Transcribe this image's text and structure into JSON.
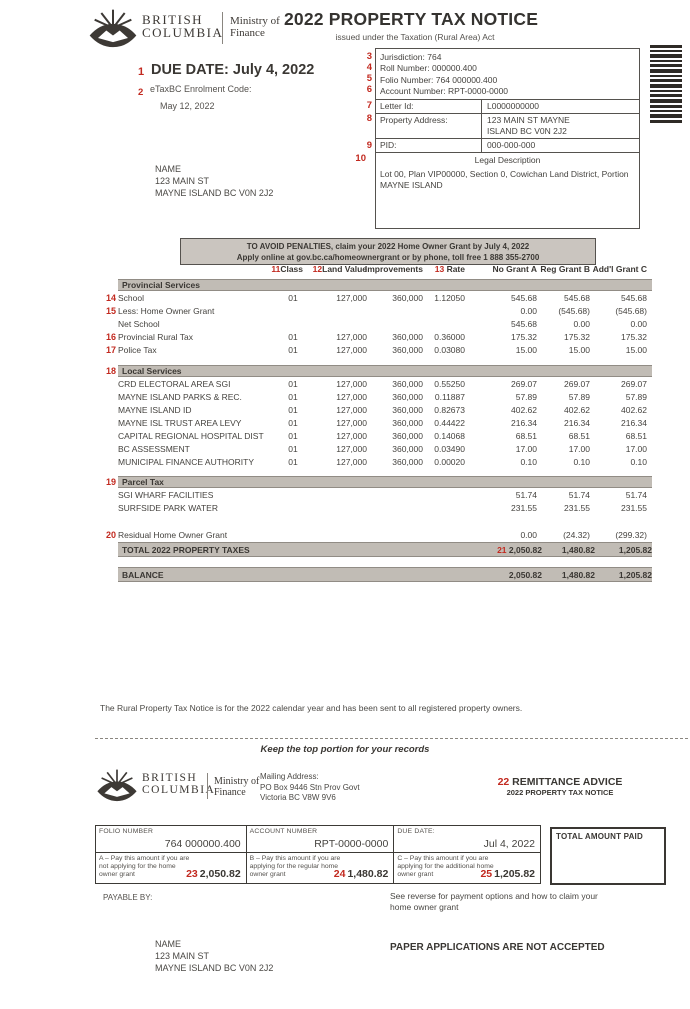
{
  "header": {
    "brand_line1": "BRITISH",
    "brand_line2": "COLUMBIA",
    "ministry_line1": "Ministry of",
    "ministry_line2": "Finance",
    "title": "2022 PROPERTY TAX NOTICE",
    "subtitle": "issued under the Taxation (Rural Area) Act"
  },
  "notice": {
    "due_num": "1",
    "due_label": "DUE DATE:  July 4, 2022",
    "etax_num": "2",
    "etax_label": "eTaxBC Enrolment Code:",
    "issue_date": "May 12, 2022",
    "owner": [
      "NAME",
      "123 MAIN ST",
      "MAYNE ISLAND BC  V0N 2J2"
    ]
  },
  "info_box": {
    "jurisdiction_num": "3",
    "jurisdiction": "Jurisdiction:  764",
    "roll_num": "4",
    "roll": "Roll Number:  000000.400",
    "folio_num": "5",
    "folio": "Folio Number:  764 000000.400",
    "account_num": "6",
    "account": "Account Number:  RPT-0000-0000",
    "letter_num": "7",
    "letter_label": "Letter Id:",
    "letter_value": "L0000000000",
    "address_num": "8",
    "address_label": "Property Address:",
    "address_line1": "123 MAIN ST MAYNE",
    "address_line2": "ISLAND BC V0N 2J2",
    "pid_num": "9",
    "pid_label": "PID:",
    "pid_value": "000-000-000",
    "legal_num": "10",
    "legal_label": "Legal Description",
    "legal_text": "Lot 00, Plan VIP00000, Section 0, Cowichan Land District, Portion MAYNE ISLAND"
  },
  "banner": {
    "line1": "TO AVOID PENALTIES, claim your 2022 Home Owner Grant by July 4, 2022",
    "line2": "Apply online at gov.bc.ca/homeownergrant or by phone, toll free 1 888 355-2700"
  },
  "tax_table": {
    "header": {
      "class_num": "11",
      "class": "Class",
      "land_num": "12",
      "land": "Land Value",
      "improvements": "Improvements",
      "rate_num": "13",
      "rate": "Rate",
      "a": "No Grant A",
      "b": "Reg Grant B",
      "c": "Add'l Grant C"
    },
    "sections": [
      {
        "num": "",
        "title": "Provincial Services",
        "rows": [
          {
            "num": "14",
            "name": "School",
            "class": "01",
            "land": "127,000",
            "imp": "360,000",
            "rate": "1.12050",
            "a": "545.68",
            "b": "545.68",
            "c": "545.68"
          },
          {
            "num": "15",
            "name": "Less: Home Owner Grant",
            "class": "",
            "land": "",
            "imp": "",
            "rate": "",
            "a": "0.00",
            "b": "(545.68)",
            "c": "(545.68)"
          },
          {
            "num": "",
            "name": "Net School",
            "class": "",
            "land": "",
            "imp": "",
            "rate": "",
            "a": "545.68",
            "b": "0.00",
            "c": "0.00"
          },
          {
            "num": "16",
            "name": "Provincial Rural Tax",
            "class": "01",
            "land": "127,000",
            "imp": "360,000",
            "rate": "0.36000",
            "a": "175.32",
            "b": "175.32",
            "c": "175.32"
          },
          {
            "num": "17",
            "name": "Police Tax",
            "class": "01",
            "land": "127,000",
            "imp": "360,000",
            "rate": "0.03080",
            "a": "15.00",
            "b": "15.00",
            "c": "15.00"
          }
        ]
      },
      {
        "num": "18",
        "title": "Local Services",
        "rows": [
          {
            "num": "",
            "name": "CRD ELECTORAL AREA SGI",
            "class": "01",
            "land": "127,000",
            "imp": "360,000",
            "rate": "0.55250",
            "a": "269.07",
            "b": "269.07",
            "c": "269.07"
          },
          {
            "num": "",
            "name": "MAYNE ISLAND PARKS & REC.",
            "class": "01",
            "land": "127,000",
            "imp": "360,000",
            "rate": "0.11887",
            "a": "57.89",
            "b": "57.89",
            "c": "57.89"
          },
          {
            "num": "",
            "name": "MAYNE ISLAND ID",
            "class": "01",
            "land": "127,000",
            "imp": "360,000",
            "rate": "0.82673",
            "a": "402.62",
            "b": "402.62",
            "c": "402.62"
          },
          {
            "num": "",
            "name": "MAYNE ISL TRUST AREA LEVY",
            "class": "01",
            "land": "127,000",
            "imp": "360,000",
            "rate": "0.44422",
            "a": "216.34",
            "b": "216.34",
            "c": "216.34"
          },
          {
            "num": "",
            "name": "CAPITAL REGIONAL HOSPITAL DIST",
            "class": "01",
            "land": "127,000",
            "imp": "360,000",
            "rate": "0.14068",
            "a": "68.51",
            "b": "68.51",
            "c": "68.51"
          },
          {
            "num": "",
            "name": "BC ASSESSMENT",
            "class": "01",
            "land": "127,000",
            "imp": "360,000",
            "rate": "0.03490",
            "a": "17.00",
            "b": "17.00",
            "c": "17.00"
          },
          {
            "num": "",
            "name": "MUNICIPAL FINANCE AUTHORITY",
            "class": "01",
            "land": "127,000",
            "imp": "360,000",
            "rate": "0.00020",
            "a": "0.10",
            "b": "0.10",
            "c": "0.10"
          }
        ]
      },
      {
        "num": "19",
        "title": "Parcel Tax",
        "rows": [
          {
            "num": "",
            "name": "SGI WHARF FACILITIES",
            "class": "",
            "land": "",
            "imp": "",
            "rate": "",
            "a": "51.74",
            "b": "51.74",
            "c": "51.74"
          },
          {
            "num": "",
            "name": "SURFSIDE PARK WATER",
            "class": "",
            "land": "",
            "imp": "",
            "rate": "",
            "a": "231.55",
            "b": "231.55",
            "c": "231.55"
          }
        ]
      }
    ],
    "residual": {
      "num": "20",
      "name": "Residual Home Owner Grant",
      "class": "",
      "land": "",
      "imp": "",
      "rate": "",
      "a": "0.00",
      "b": "(24.32)",
      "c": "(299.32)"
    },
    "total": {
      "label": "TOTAL 2022 PROPERTY TAXES",
      "num": "21",
      "a": "2,050.82",
      "b": "1,480.82",
      "c": "1,205.82"
    },
    "balance": {
      "label": "BALANCE",
      "a": "2,050.82",
      "b": "1,480.82",
      "c": "1,205.82"
    }
  },
  "footer_note": "The Rural Property Tax Notice is for the 2022 calendar year and has been sent to all registered property owners.",
  "keep_line": "Keep the top portion for your records",
  "remit": {
    "mailing": [
      "Mailing Address:",
      "PO Box 9446 Stn Prov Govt",
      "Victoria BC  V8W 9V6"
    ],
    "advice_num": "22",
    "advice_title": "REMITTANCE ADVICE",
    "advice_sub": "2022 PROPERTY TAX NOTICE",
    "cols": [
      {
        "label": "FOLIO NUMBER",
        "value": "764 000000.400",
        "desc": "A – Pay this amount if you are not applying for the home owner grant",
        "num": "23",
        "amount": "2,050.82"
      },
      {
        "label": "ACCOUNT NUMBER",
        "value": "RPT-0000-0000",
        "desc": "B – Pay this amount if you are applying for the regular home owner grant",
        "num": "24",
        "amount": "1,480.82"
      },
      {
        "label": "DUE DATE:",
        "value": "Jul 4, 2022",
        "desc": "C – Pay this amount if you are applying for the additional home owner grant",
        "num": "25",
        "amount": "1,205.82"
      }
    ],
    "total_paid_label": "TOTAL AMOUNT PAID",
    "payable_by": "PAYABLE BY:",
    "see_reverse": "See reverse for payment options and how to claim your home owner grant",
    "paper_warning": "PAPER APPLICATIONS ARE NOT ACCEPTED",
    "owner": [
      "NAME",
      "123 MAIN ST",
      "MAYNE ISLAND BC  V0N 2J2"
    ]
  },
  "colors": {
    "marker_red": "#c2291f",
    "bar_gray": "#c1bcb5",
    "ink": "#45433f"
  }
}
